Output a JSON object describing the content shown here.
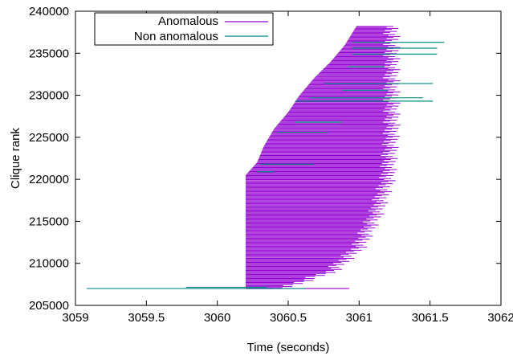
{
  "chart_data": {
    "type": "scatter",
    "title": "",
    "xlabel": "Time (seconds)",
    "ylabel": "Clique rank",
    "xlim": [
      3059,
      3062
    ],
    "ylim": [
      205000,
      240000
    ],
    "xticks": [
      3059,
      3059.5,
      3060,
      3060.5,
      3061,
      3061.5,
      3062
    ],
    "xtick_labels": [
      "3059",
      "3059.5",
      "3060",
      "3060.5",
      "3061",
      "3061.5",
      "3062"
    ],
    "yticks": [
      205000,
      210000,
      215000,
      220000,
      225000,
      230000,
      235000,
      240000
    ],
    "ytick_labels": [
      "205000",
      "210000",
      "215000",
      "220000",
      "225000",
      "230000",
      "235000",
      "240000"
    ],
    "grid": false,
    "legend_position": "top-left",
    "series": [
      {
        "name": "Anomalous",
        "color": "#9400d3",
        "description": "horizontal segments, one per clique rank, spanning start time to end time",
        "left_boundary": [
          [
            3060.2,
            207000
          ],
          [
            3060.2,
            220500
          ],
          [
            3060.28,
            222000
          ],
          [
            3060.33,
            224000
          ],
          [
            3060.4,
            226000
          ],
          [
            3060.5,
            228000
          ],
          [
            3060.58,
            230000
          ],
          [
            3060.68,
            232000
          ],
          [
            3060.8,
            234000
          ],
          [
            3060.9,
            236000
          ],
          [
            3060.98,
            238200
          ]
        ],
        "right_boundary": [
          [
            3060.45,
            207000
          ],
          [
            3060.8,
            209000
          ],
          [
            3061.0,
            212000
          ],
          [
            3061.12,
            216000
          ],
          [
            3061.2,
            220000
          ],
          [
            3061.23,
            226000
          ],
          [
            3061.23,
            238200
          ]
        ],
        "outlier_segments": [
          [
            3060.2,
            3060.93,
            207000
          ]
        ]
      },
      {
        "name": "Non anomalous",
        "color": "#008b80",
        "description": "horizontal segments, start time to end time at a clique rank",
        "segments": [
          [
            3059.08,
            3060.62,
            207000
          ],
          [
            3059.78,
            3060.35,
            207150
          ],
          [
            3060.95,
            3061.6,
            236300
          ],
          [
            3060.95,
            3061.55,
            235600
          ],
          [
            3060.95,
            3061.55,
            234900
          ],
          [
            3060.75,
            3061.52,
            231400
          ],
          [
            3060.65,
            3061.45,
            229700
          ],
          [
            3060.55,
            3061.52,
            229300
          ],
          [
            3060.88,
            3061.2,
            230600
          ],
          [
            3060.55,
            3060.88,
            226800
          ],
          [
            3060.42,
            3060.78,
            225600
          ],
          [
            3060.3,
            3060.68,
            221800
          ],
          [
            3060.28,
            3060.4,
            220900
          ],
          [
            3060.92,
            3061.18,
            233400
          ]
        ]
      }
    ]
  }
}
